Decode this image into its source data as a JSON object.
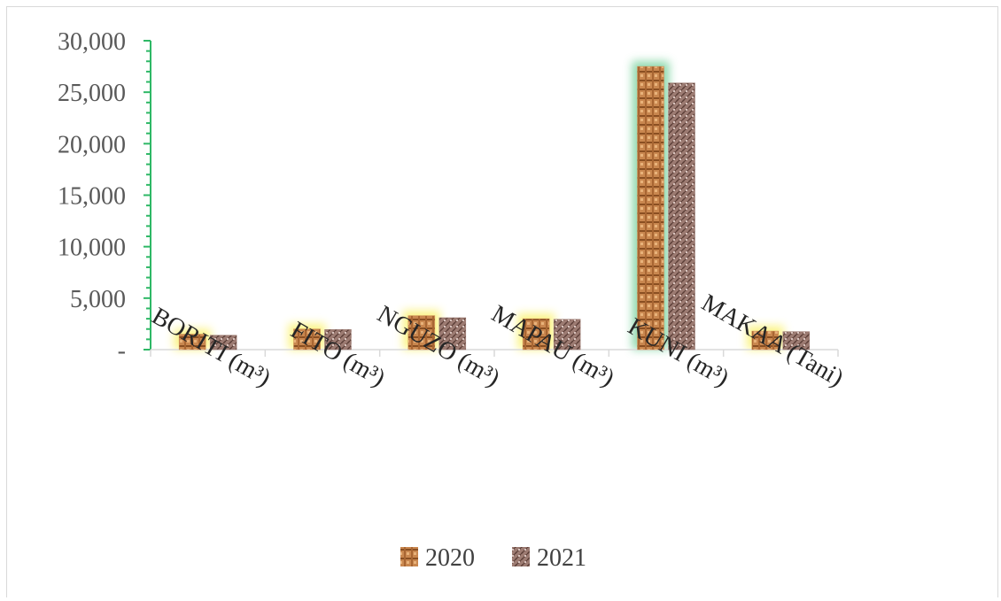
{
  "chart_data": {
    "type": "bar",
    "title": "",
    "xlabel": "",
    "ylabel": "",
    "categories": [
      "BORITI (m³)",
      "FITO (m³)",
      "NGUZO (m³)",
      "MAPAU (m³)",
      "KUNI (m³)",
      "MAKAA (Tani)"
    ],
    "series": [
      {
        "name": "2020",
        "values": [
          1500,
          2000,
          3300,
          3000,
          27500,
          1800
        ],
        "color": "#c9874f"
      },
      {
        "name": "2021",
        "values": [
          1400,
          1950,
          3100,
          2950,
          25900,
          1750
        ],
        "color": "#9c7b72"
      }
    ],
    "ylim": [
      0,
      30000
    ],
    "yticks": [
      0,
      5000,
      10000,
      15000,
      20000,
      25000,
      30000
    ],
    "ytick_labels": [
      "-",
      "5,000",
      "10,000",
      "15,000",
      "20,000",
      "25,000",
      "30,000"
    ],
    "grid": false,
    "legend_position": "bottom",
    "axis_color": "#2eb866"
  }
}
